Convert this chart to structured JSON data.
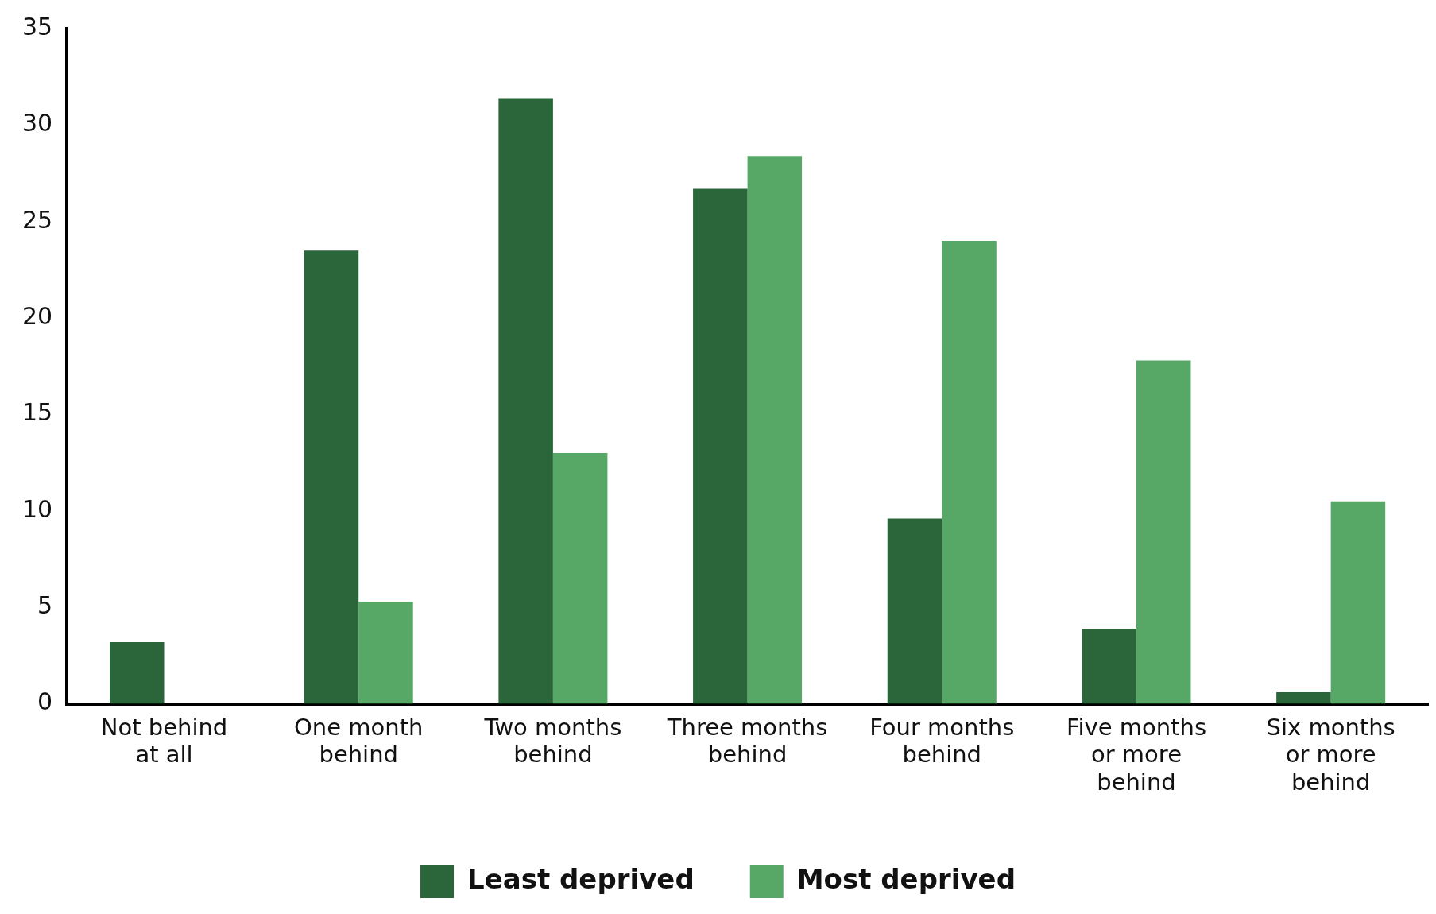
{
  "chart_data": {
    "type": "bar",
    "categories": [
      "Not behind at all",
      "One month behind",
      "Two months behind",
      "Three months behind",
      "Four months behind",
      "Five months or more behind",
      "Six months or more behind"
    ],
    "series": [
      {
        "name": "Least deprived",
        "color": "#2b663b",
        "values": [
          3.2,
          23.5,
          31.4,
          26.7,
          9.6,
          3.9,
          0.6
        ]
      },
      {
        "name": "Most deprived",
        "color": "#57a866",
        "values": [
          0,
          5.3,
          13.0,
          28.4,
          24.0,
          17.8,
          10.5
        ]
      }
    ],
    "ylim": [
      0,
      35
    ],
    "yticks": [
      0,
      5,
      10,
      15,
      20,
      25,
      30,
      35
    ],
    "grid": false,
    "legend": "bottom"
  }
}
